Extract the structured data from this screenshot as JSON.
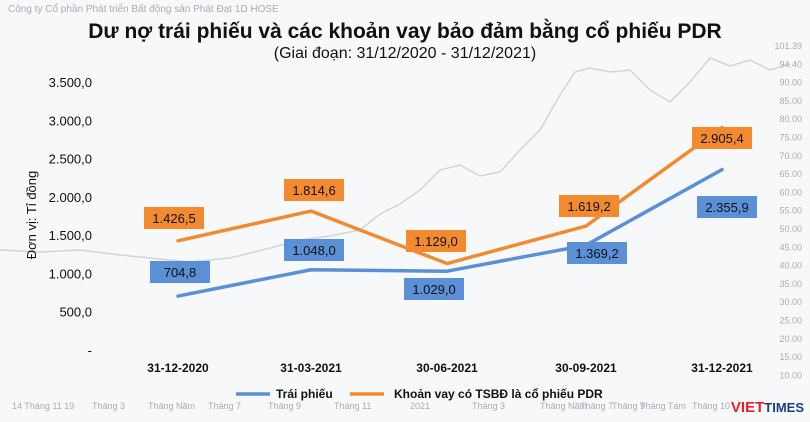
{
  "background": {
    "company_text": "Công ty Cổ phần Phát triển Bất động sản Phát Đạt 1D HOSE",
    "bottom_labels": [
      "14 Tháng 11 19",
      "Tháng 3",
      "Tháng Năm",
      "Tháng 7",
      "Tháng 9",
      "Tháng 11",
      "2021",
      "Tháng 3",
      "Tháng Năm",
      "Tháng 7",
      "Tháng 9",
      "Tháng Tám",
      "Tháng 10"
    ],
    "right_labels": [
      "101.39",
      "94.40",
      "90.00",
      "85.00",
      "80.00",
      "75.00",
      "70.00",
      "65.00",
      "60.00",
      "55.00",
      "50.00",
      "45.00",
      "40.00",
      "35.00",
      "30.00",
      "25.00",
      "20.00",
      "15.00",
      "10.00"
    ],
    "stock_color": "#c8ccd2"
  },
  "logo": {
    "part1": "VIET",
    "part2": "TIMES"
  },
  "chart_data": {
    "type": "line",
    "title": "Dư nợ trái phiếu và các khoản vay bảo đảm bằng cổ phiếu PDR",
    "subtitle": "(Giai đoạn: 31/12/2020 - 31/12/2021)",
    "ylabel": "Đơn vị: Tỉ đồng",
    "ylim": [
      0,
      3500
    ],
    "yticks": [
      "-",
      "500,0",
      "1.000,0",
      "1.500,0",
      "2.000,0",
      "2.500,0",
      "3.000,0",
      "3.500,0"
    ],
    "categories": [
      "31-12-2020",
      "31-03-2021",
      "30-06-2021",
      "30-09-2021",
      "31-12-2021"
    ],
    "series": [
      {
        "name": "Trái phiếu",
        "color": "#5b8fd6",
        "values": [
          704.8,
          1048.0,
          1029.0,
          1369.2,
          2355.9
        ],
        "labels": [
          "704,8",
          "1.048,0",
          "1.029,0",
          "1.369,2",
          "2.355,9"
        ]
      },
      {
        "name": "Khoản vay có TSBĐ là cổ phiếu PDR",
        "color": "#f28b30",
        "values": [
          1426.5,
          1814.6,
          1129.0,
          1619.2,
          2905.4
        ],
        "labels": [
          "1.426,5",
          "1.814,6",
          "1.129,0",
          "1.619,2",
          "2.905,4"
        ]
      }
    ],
    "legend": "bottom"
  }
}
